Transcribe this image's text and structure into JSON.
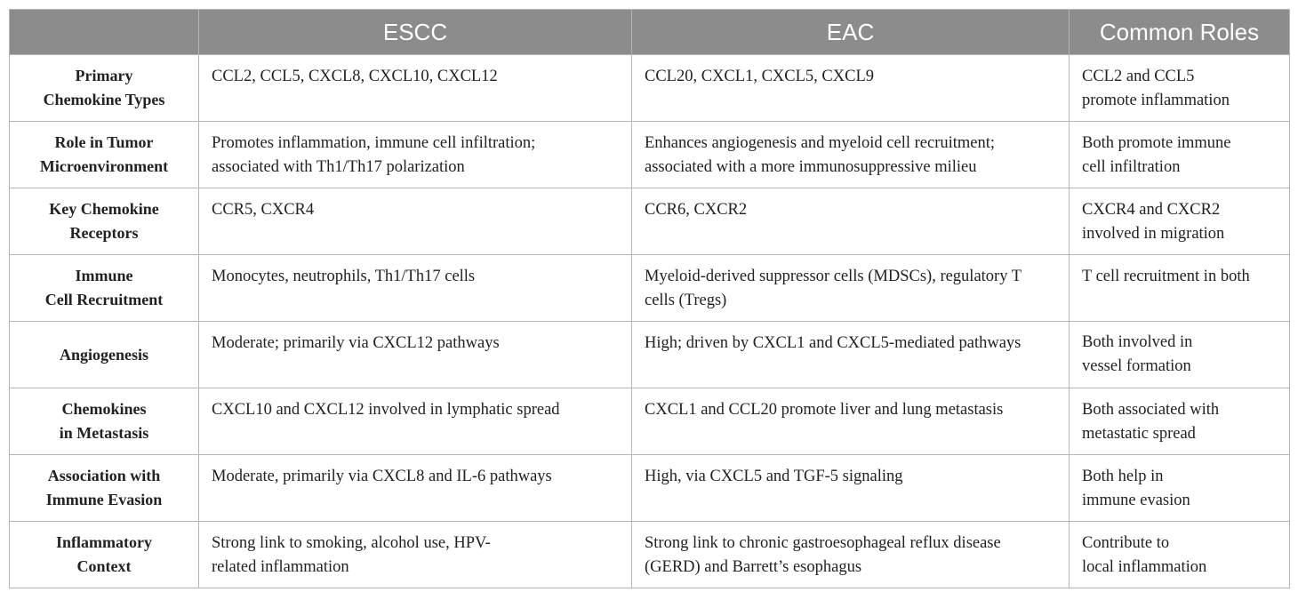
{
  "table": {
    "headers": [
      "",
      "ESCC",
      "EAC",
      "Common Roles"
    ],
    "rows": [
      {
        "label": "Primary\nChemokine Types",
        "escc": "CCL2, CCL5, CXCL8, CXCL10, CXCL12",
        "eac": "CCL20, CXCL1, CXCL5, CXCL9",
        "common": "CCL2 and CCL5\npromote inflammation"
      },
      {
        "label": "Role in Tumor\nMicroenvironment",
        "escc": "Promotes inflammation, immune cell infiltration;\nassociated with Th1/Th17 polarization",
        "eac": "Enhances angiogenesis and myeloid cell recruitment;\nassociated with a more immunosuppressive milieu",
        "common": "Both promote immune\ncell infiltration"
      },
      {
        "label": "Key Chemokine\nReceptors",
        "escc": "CCR5, CXCR4",
        "eac": "CCR6, CXCR2",
        "common": "CXCR4 and CXCR2\ninvolved in migration"
      },
      {
        "label": "Immune\nCell Recruitment",
        "escc": "Monocytes, neutrophils, Th1/Th17 cells",
        "eac": "Myeloid-derived suppressor cells (MDSCs), regulatory T\ncells (Tregs)",
        "common": "T cell recruitment in both"
      },
      {
        "label": "Angiogenesis",
        "escc": "Moderate; primarily via CXCL12 pathways",
        "eac": "High; driven by CXCL1 and CXCL5-mediated pathways",
        "common": "Both involved in\nvessel formation"
      },
      {
        "label": "Chemokines\nin Metastasis",
        "escc": "CXCL10 and CXCL12 involved in lymphatic spread",
        "eac": "CXCL1 and CCL20 promote liver and lung metastasis",
        "common": "Both associated with\nmetastatic spread"
      },
      {
        "label": "Association with\nImmune Evasion",
        "escc": "Moderate, primarily via CXCL8 and IL-6 pathways",
        "eac": "High, via CXCL5 and TGF-5 signaling",
        "common": "Both help in\nimmune evasion"
      },
      {
        "label": "Inflammatory\nContext",
        "escc": "Strong link to smoking, alcohol use, HPV-\nrelated inflammation",
        "eac": "Strong link to chronic gastroesophageal reflux disease\n(GERD) and Barrett’s esophagus",
        "common": "Contribute to\nlocal inflammation"
      }
    ]
  }
}
